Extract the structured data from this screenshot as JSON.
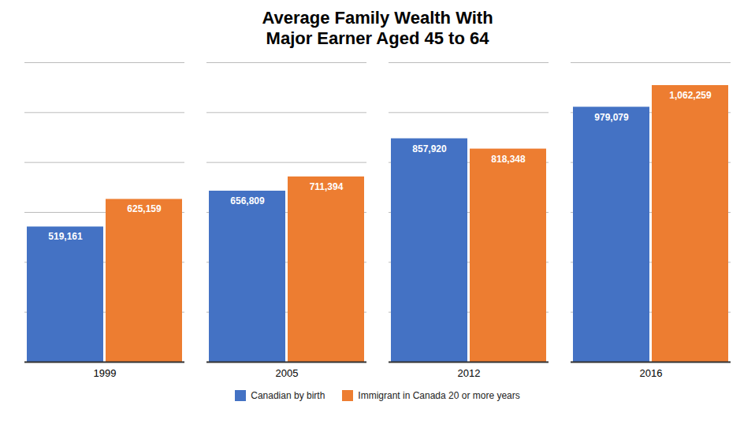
{
  "chart_data": {
    "type": "bar",
    "title": "Average Family Wealth With\nMajor Earner Aged 45 to 64",
    "categories": [
      "1999",
      "2005",
      "2012",
      "2016"
    ],
    "series": [
      {
        "name": "Canadian by birth",
        "color": "#4472C4",
        "values": [
          519161,
          656809,
          857920,
          979079
        ],
        "value_labels": [
          "519,161",
          "656,809",
          "857,920",
          "979,079"
        ]
      },
      {
        "name": "Immigrant in Canada 20 or more years",
        "color": "#ED7D31",
        "values": [
          625159,
          711394,
          818348,
          1062259
        ],
        "value_labels": [
          "625,159",
          "711,394",
          "818,348",
          "1,062,259"
        ]
      }
    ],
    "ylim": [
      0,
      1150000
    ],
    "yticks": [
      0,
      191666.66666666666,
      383333.3333333333,
      575000,
      766666.6666666666,
      958333.3333333333,
      1150000
    ],
    "grid": true,
    "tick_labels": "x",
    "legend": "bottom",
    "data_labels": true
  }
}
